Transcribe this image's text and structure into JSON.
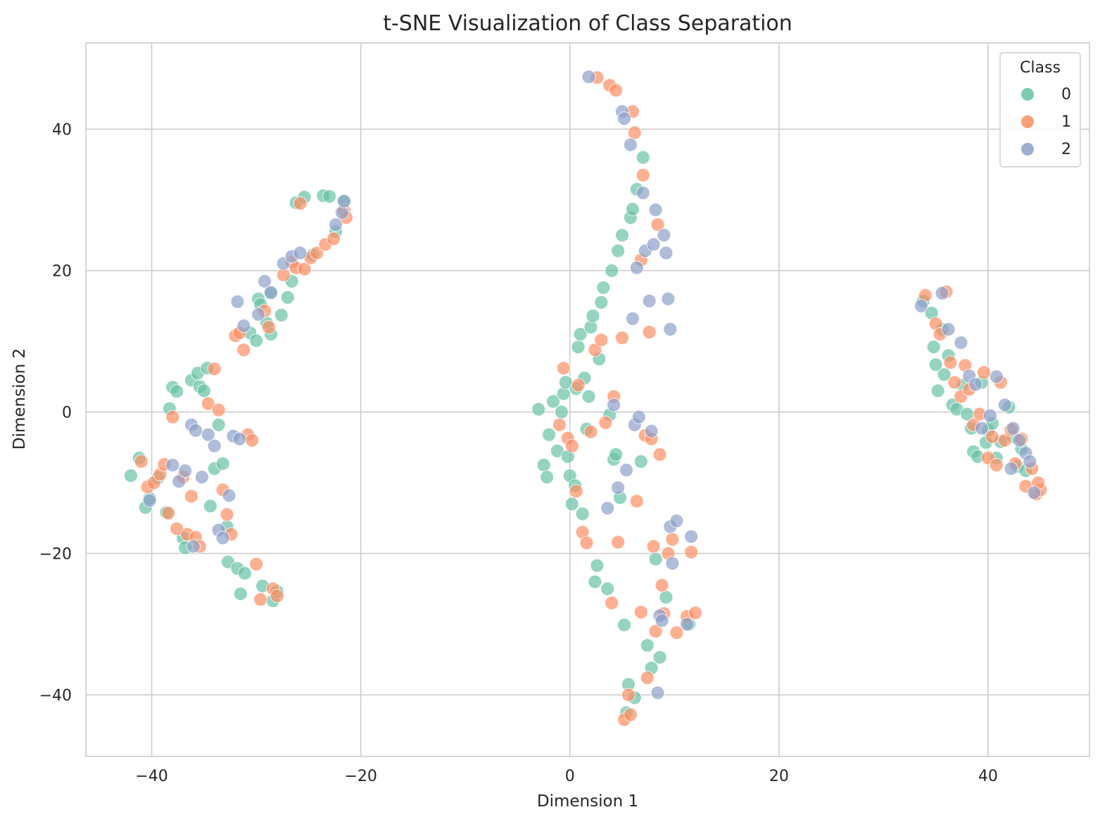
{
  "chart_data": {
    "type": "scatter",
    "title": "t-SNE Visualization of Class Separation",
    "xlabel": "Dimension 1",
    "ylabel": "Dimension 2",
    "xlim": [
      -46.3,
      49.7
    ],
    "ylim": [
      -48.7,
      52.2
    ],
    "xticks": [
      -40,
      -20,
      0,
      20,
      40
    ],
    "yticks": [
      -40,
      -20,
      0,
      20,
      40
    ],
    "xtick_labels": [
      "−40",
      "−20",
      "0",
      "20",
      "40"
    ],
    "ytick_labels": [
      "−40",
      "−20",
      "0",
      "20",
      "40"
    ],
    "grid": true,
    "legend": {
      "title": "Class",
      "position": "top-right"
    },
    "series": [
      {
        "name": "0",
        "color": "#66c2a5",
        "points": [
          [
            -42.0,
            -9.0
          ],
          [
            -41.2,
            -6.5
          ],
          [
            -40.6,
            -13.5
          ],
          [
            -40.2,
            -12.2
          ],
          [
            -39.4,
            -9.3
          ],
          [
            -38.6,
            -14.2
          ],
          [
            -38.3,
            0.5
          ],
          [
            -38.0,
            3.5
          ],
          [
            -37.6,
            2.9
          ],
          [
            -37.0,
            -17.8
          ],
          [
            -36.8,
            -19.2
          ],
          [
            -36.2,
            4.5
          ],
          [
            -35.6,
            5.5
          ],
          [
            -35.4,
            3.6
          ],
          [
            -35.0,
            3.0
          ],
          [
            -34.7,
            6.2
          ],
          [
            -34.4,
            -13.3
          ],
          [
            -34.0,
            -8.0
          ],
          [
            -33.6,
            -1.8
          ],
          [
            -33.2,
            -7.3
          ],
          [
            -32.8,
            -16.2
          ],
          [
            -32.7,
            -21.2
          ],
          [
            -31.8,
            -22.1
          ],
          [
            -31.5,
            -25.7
          ],
          [
            -31.1,
            -22.8
          ],
          [
            -30.6,
            11.2
          ],
          [
            -30.0,
            10.1
          ],
          [
            -29.8,
            16.0
          ],
          [
            -29.6,
            15.2
          ],
          [
            -29.4,
            -24.6
          ],
          [
            -29.0,
            12.6
          ],
          [
            -28.6,
            16.8
          ],
          [
            -28.6,
            11.0
          ],
          [
            -28.4,
            -26.7
          ],
          [
            -28.0,
            -25.4
          ],
          [
            -27.6,
            13.7
          ],
          [
            -27.0,
            16.2
          ],
          [
            -26.6,
            18.5
          ],
          [
            -26.2,
            29.6
          ],
          [
            -25.4,
            30.4
          ],
          [
            -24.6,
            22.2
          ],
          [
            -23.6,
            30.6
          ],
          [
            -23.0,
            30.5
          ],
          [
            -22.4,
            25.5
          ],
          [
            -21.6,
            29.9
          ],
          [
            -3.0,
            0.4
          ],
          [
            -2.5,
            -7.5
          ],
          [
            -2.2,
            -9.2
          ],
          [
            -2.0,
            -3.2
          ],
          [
            -1.6,
            1.5
          ],
          [
            -1.2,
            -5.5
          ],
          [
            -0.8,
            0.0
          ],
          [
            -0.6,
            2.6
          ],
          [
            -0.4,
            4.2
          ],
          [
            -0.2,
            -6.3
          ],
          [
            0.0,
            -9.0
          ],
          [
            0.2,
            -13.0
          ],
          [
            0.5,
            -10.4
          ],
          [
            0.6,
            3.3
          ],
          [
            0.8,
            9.2
          ],
          [
            1.0,
            11.0
          ],
          [
            1.2,
            -14.4
          ],
          [
            1.4,
            4.8
          ],
          [
            1.6,
            -2.4
          ],
          [
            1.8,
            2.2
          ],
          [
            2.0,
            12.0
          ],
          [
            2.2,
            13.6
          ],
          [
            2.4,
            -24.0
          ],
          [
            2.6,
            -21.7
          ],
          [
            2.8,
            7.5
          ],
          [
            3.0,
            15.5
          ],
          [
            3.2,
            17.6
          ],
          [
            3.6,
            -25.0
          ],
          [
            3.8,
            -0.4
          ],
          [
            4.0,
            20.0
          ],
          [
            4.2,
            -6.7
          ],
          [
            4.4,
            -6.0
          ],
          [
            4.6,
            22.8
          ],
          [
            4.8,
            -12.1
          ],
          [
            5.0,
            25.0
          ],
          [
            5.2,
            -30.1
          ],
          [
            5.4,
            -42.5
          ],
          [
            5.6,
            -38.5
          ],
          [
            5.8,
            27.5
          ],
          [
            6.0,
            28.7
          ],
          [
            6.2,
            -40.4
          ],
          [
            6.4,
            31.5
          ],
          [
            6.8,
            -7.0
          ],
          [
            7.0,
            36.0
          ],
          [
            7.4,
            -33.0
          ],
          [
            7.8,
            -36.2
          ],
          [
            8.2,
            -20.8
          ],
          [
            8.6,
            -34.7
          ],
          [
            9.2,
            -26.2
          ],
          [
            11.4,
            -30.0
          ],
          [
            33.8,
            15.7
          ],
          [
            34.6,
            14.0
          ],
          [
            34.8,
            9.2
          ],
          [
            35.0,
            6.7
          ],
          [
            35.2,
            3.0
          ],
          [
            35.6,
            11.7
          ],
          [
            35.8,
            5.3
          ],
          [
            36.2,
            8.0
          ],
          [
            36.6,
            1.0
          ],
          [
            37.0,
            0.4
          ],
          [
            37.6,
            3.8
          ],
          [
            38.0,
            -0.3
          ],
          [
            38.4,
            -2.3
          ],
          [
            38.6,
            -5.6
          ],
          [
            39.0,
            -6.3
          ],
          [
            39.4,
            4.2
          ],
          [
            39.8,
            -4.3
          ],
          [
            40.0,
            -2.6
          ],
          [
            40.4,
            -1.6
          ],
          [
            40.8,
            -6.5
          ],
          [
            41.2,
            -4.2
          ],
          [
            42.0,
            0.7
          ],
          [
            42.4,
            -3.5
          ],
          [
            42.8,
            -7.7
          ],
          [
            43.2,
            -5.2
          ],
          [
            43.6,
            -8.3
          ]
        ]
      },
      {
        "name": "1",
        "color": "#fc8d62",
        "points": [
          [
            -41.0,
            -7.0
          ],
          [
            -40.4,
            -10.6
          ],
          [
            -39.8,
            -10.0
          ],
          [
            -39.2,
            -8.8
          ],
          [
            -38.8,
            -7.4
          ],
          [
            -38.4,
            -14.3
          ],
          [
            -38.0,
            -0.7
          ],
          [
            -37.6,
            -16.5
          ],
          [
            -37.0,
            -9.2
          ],
          [
            -36.6,
            -17.3
          ],
          [
            -36.2,
            -11.9
          ],
          [
            -35.8,
            -17.7
          ],
          [
            -35.4,
            -19.0
          ],
          [
            -34.6,
            1.2
          ],
          [
            -34.0,
            6.1
          ],
          [
            -33.6,
            0.3
          ],
          [
            -33.2,
            -11.0
          ],
          [
            -32.8,
            -14.5
          ],
          [
            -32.4,
            -17.3
          ],
          [
            -32.0,
            10.8
          ],
          [
            -31.6,
            11.2
          ],
          [
            -31.2,
            8.8
          ],
          [
            -30.8,
            -3.2
          ],
          [
            -30.4,
            -4.0
          ],
          [
            -30.0,
            -21.5
          ],
          [
            -29.6,
            -26.5
          ],
          [
            -29.2,
            14.3
          ],
          [
            -28.8,
            12.0
          ],
          [
            -28.4,
            -25.0
          ],
          [
            -28.0,
            -26.0
          ],
          [
            -27.4,
            19.4
          ],
          [
            -26.6,
            21.2
          ],
          [
            -26.2,
            20.4
          ],
          [
            -25.8,
            29.5
          ],
          [
            -25.4,
            20.2
          ],
          [
            -24.8,
            21.8
          ],
          [
            -24.2,
            22.5
          ],
          [
            -23.4,
            23.7
          ],
          [
            -22.6,
            24.5
          ],
          [
            -21.6,
            28.5
          ],
          [
            -21.4,
            27.5
          ],
          [
            -1.0,
            -1.8
          ],
          [
            -0.6,
            6.2
          ],
          [
            -0.2,
            -3.7
          ],
          [
            0.2,
            -4.8
          ],
          [
            0.6,
            -11.2
          ],
          [
            0.8,
            3.8
          ],
          [
            1.2,
            -17.0
          ],
          [
            1.6,
            -18.5
          ],
          [
            2.0,
            -2.8
          ],
          [
            2.4,
            8.8
          ],
          [
            2.6,
            47.3
          ],
          [
            3.0,
            10.2
          ],
          [
            3.4,
            -1.5
          ],
          [
            3.8,
            46.2
          ],
          [
            4.0,
            -27.0
          ],
          [
            4.2,
            2.2
          ],
          [
            4.4,
            45.5
          ],
          [
            4.6,
            -18.4
          ],
          [
            5.0,
            10.5
          ],
          [
            5.2,
            -43.5
          ],
          [
            5.6,
            -40.0
          ],
          [
            5.8,
            -42.8
          ],
          [
            6.0,
            42.5
          ],
          [
            6.2,
            39.5
          ],
          [
            6.4,
            -12.6
          ],
          [
            6.8,
            21.5
          ],
          [
            6.8,
            -28.3
          ],
          [
            7.0,
            33.5
          ],
          [
            7.2,
            -3.3
          ],
          [
            7.4,
            -37.6
          ],
          [
            7.6,
            11.3
          ],
          [
            7.8,
            -3.8
          ],
          [
            8.0,
            -19.0
          ],
          [
            8.2,
            -31.0
          ],
          [
            8.4,
            26.5
          ],
          [
            8.6,
            -6.0
          ],
          [
            8.8,
            -24.5
          ],
          [
            9.0,
            -28.5
          ],
          [
            9.4,
            -20.0
          ],
          [
            9.8,
            -18.0
          ],
          [
            10.2,
            -31.2
          ],
          [
            11.2,
            -28.9
          ],
          [
            12.0,
            -28.4
          ],
          [
            11.6,
            -19.8
          ],
          [
            34.0,
            16.5
          ],
          [
            35.0,
            12.5
          ],
          [
            35.4,
            11.0
          ],
          [
            36.0,
            17.0
          ],
          [
            36.4,
            7.0
          ],
          [
            36.8,
            4.2
          ],
          [
            37.4,
            2.2
          ],
          [
            37.8,
            6.6
          ],
          [
            38.2,
            3.2
          ],
          [
            38.6,
            -1.8
          ],
          [
            39.2,
            -0.3
          ],
          [
            39.6,
            5.6
          ],
          [
            40.0,
            -6.5
          ],
          [
            40.4,
            -3.5
          ],
          [
            40.8,
            -7.5
          ],
          [
            41.2,
            4.2
          ],
          [
            41.6,
            -4.0
          ],
          [
            42.2,
            -2.5
          ],
          [
            42.6,
            -7.3
          ],
          [
            43.2,
            -3.8
          ],
          [
            43.6,
            -10.5
          ],
          [
            44.2,
            -8.0
          ],
          [
            44.6,
            -11.6
          ],
          [
            45.0,
            -11.0
          ],
          [
            44.8,
            -10.0
          ]
        ]
      },
      {
        "name": "2",
        "color": "#8da0cb",
        "points": [
          [
            -40.2,
            -12.5
          ],
          [
            -38.0,
            -7.5
          ],
          [
            -37.4,
            -9.8
          ],
          [
            -36.8,
            -8.3
          ],
          [
            -36.2,
            -1.8
          ],
          [
            -36.0,
            -19.0
          ],
          [
            -35.8,
            -2.6
          ],
          [
            -35.2,
            -9.2
          ],
          [
            -34.6,
            -3.2
          ],
          [
            -34.0,
            -4.8
          ],
          [
            -33.6,
            -16.7
          ],
          [
            -33.2,
            -17.8
          ],
          [
            -32.6,
            -11.8
          ],
          [
            -32.2,
            -3.4
          ],
          [
            -31.6,
            -3.8
          ],
          [
            -31.8,
            15.6
          ],
          [
            -31.2,
            12.2
          ],
          [
            -29.8,
            13.8
          ],
          [
            -29.2,
            18.5
          ],
          [
            -28.6,
            16.9
          ],
          [
            -27.4,
            21.0
          ],
          [
            -26.6,
            22.0
          ],
          [
            -25.8,
            22.5
          ],
          [
            -22.4,
            26.5
          ],
          [
            -21.8,
            28.2
          ],
          [
            -21.6,
            29.8
          ],
          [
            1.8,
            47.4
          ],
          [
            3.6,
            -13.6
          ],
          [
            4.2,
            1.0
          ],
          [
            4.6,
            -10.7
          ],
          [
            5.0,
            42.5
          ],
          [
            5.2,
            41.5
          ],
          [
            5.4,
            -8.2
          ],
          [
            5.8,
            37.8
          ],
          [
            6.0,
            13.2
          ],
          [
            6.2,
            -1.8
          ],
          [
            6.4,
            20.4
          ],
          [
            6.6,
            -0.7
          ],
          [
            7.0,
            31.0
          ],
          [
            7.2,
            22.8
          ],
          [
            7.6,
            15.7
          ],
          [
            7.8,
            -2.7
          ],
          [
            8.0,
            23.7
          ],
          [
            8.2,
            28.6
          ],
          [
            8.4,
            -39.7
          ],
          [
            8.6,
            -28.8
          ],
          [
            8.8,
            -29.5
          ],
          [
            9.0,
            25.0
          ],
          [
            9.2,
            22.5
          ],
          [
            9.4,
            16.0
          ],
          [
            9.6,
            -16.2
          ],
          [
            9.6,
            11.7
          ],
          [
            9.8,
            -21.4
          ],
          [
            10.2,
            -15.4
          ],
          [
            11.2,
            -30.0
          ],
          [
            11.6,
            -17.6
          ],
          [
            33.6,
            15.0
          ],
          [
            35.6,
            16.8
          ],
          [
            36.2,
            11.7
          ],
          [
            37.4,
            9.8
          ],
          [
            38.2,
            5.1
          ],
          [
            38.8,
            3.9
          ],
          [
            39.4,
            -2.3
          ],
          [
            40.2,
            -0.5
          ],
          [
            40.8,
            5.0
          ],
          [
            41.6,
            1.0
          ],
          [
            42.4,
            -2.3
          ],
          [
            43.0,
            -4.0
          ],
          [
            43.6,
            -5.8
          ],
          [
            44.0,
            -7.0
          ],
          [
            44.4,
            -11.4
          ],
          [
            42.2,
            -8.0
          ]
        ]
      }
    ]
  }
}
